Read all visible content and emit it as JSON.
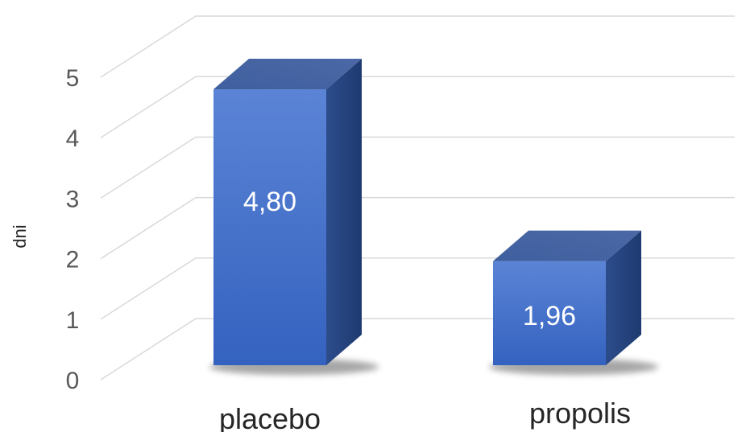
{
  "chart_data": {
    "type": "bar",
    "categories": [
      "placebo",
      "propolis"
    ],
    "values": [
      4.8,
      1.96
    ],
    "data_labels": [
      "4,80",
      "1,96"
    ],
    "title": "",
    "xlabel": "",
    "ylabel": "dni",
    "ylim": [
      0,
      5
    ],
    "yticks": [
      "0",
      "1",
      "2",
      "3",
      "4",
      "5"
    ],
    "grid": true,
    "legend": "none",
    "style": "3d-column",
    "colors": {
      "bar_front": "#4472c4",
      "bar_top": "#5a7ec4",
      "bar_side": "#2f4f8f",
      "grid": "#d9d9d9"
    }
  }
}
